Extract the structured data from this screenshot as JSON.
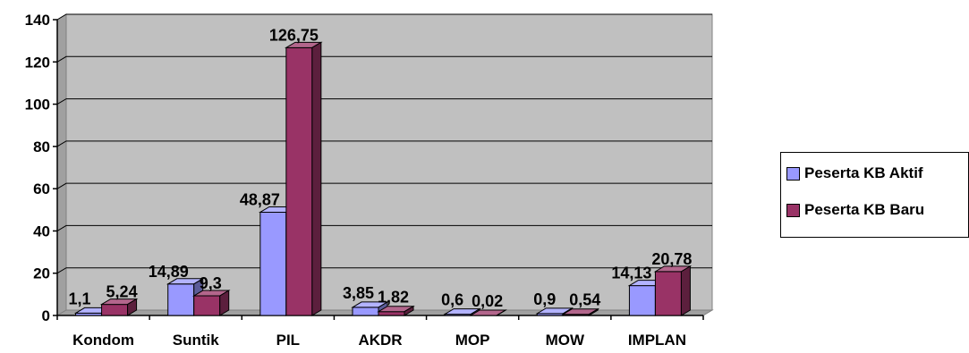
{
  "chart_data": {
    "type": "bar",
    "title": "",
    "xlabel": "",
    "ylabel": "",
    "categories": [
      "Kondom",
      "Suntik",
      "PIL",
      "AKDR",
      "MOP",
      "MOW",
      "IMPLAN"
    ],
    "series": [
      {
        "name": "Peserta KB Aktif",
        "color": "#9999ff",
        "values": [
          1.1,
          14.89,
          48.87,
          3.85,
          0.6,
          0.9,
          14.13
        ],
        "labels": [
          "1,1",
          "14,89",
          "48,87",
          "3,85",
          "0,6",
          "0,9",
          "14,13"
        ]
      },
      {
        "name": "Peserta KB Baru",
        "color": "#993366",
        "values": [
          5.24,
          9.3,
          126.75,
          1.82,
          0.02,
          0.54,
          20.78
        ],
        "labels": [
          "5,24",
          "9,3",
          "126,75",
          "1,82",
          "0,02",
          "0,54",
          "20,78"
        ]
      }
    ],
    "ylim": [
      0,
      140
    ],
    "yticks": [
      0,
      20,
      40,
      60,
      80,
      100,
      120,
      140
    ],
    "grid": true,
    "legend_position": "right",
    "style": "3d-clustered-column",
    "plot_background": "#c0c0c0"
  }
}
